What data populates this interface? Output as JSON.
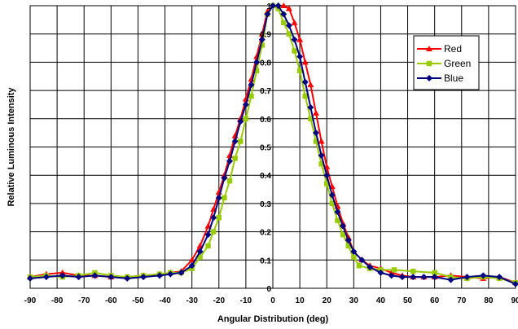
{
  "chart_data": {
    "type": "line",
    "title": "",
    "xlabel": "Angular Distribution (deg)",
    "ylabel": "Relative Luminous Intensity",
    "xlim": [
      -90,
      90
    ],
    "ylim": [
      0,
      1
    ],
    "x_ticks": [
      "-90",
      "-80",
      "-70",
      "-60",
      "-50",
      "-40",
      "-30",
      "-20",
      "-10",
      "0",
      "10",
      "20",
      "30",
      "40",
      "50",
      "60",
      "70",
      "80",
      "90"
    ],
    "y_ticks": [
      "0",
      "0.1",
      "0.2",
      "0.3",
      "0.4",
      "0.5",
      "0.6",
      "0.7",
      "0.8",
      "0.9",
      "1"
    ],
    "grid": true,
    "legend_position": "top-right",
    "series": [
      {
        "name": "Red",
        "color": "#ff0000",
        "marker": "triangle",
        "points": [
          [
            -90,
            0.04
          ],
          [
            -84,
            0.05
          ],
          [
            -78,
            0.055
          ],
          [
            -72,
            0.045
          ],
          [
            -66,
            0.045
          ],
          [
            -60,
            0.04
          ],
          [
            -54,
            0.04
          ],
          [
            -48,
            0.045
          ],
          [
            -42,
            0.05
          ],
          [
            -38,
            0.055
          ],
          [
            -34,
            0.06
          ],
          [
            -30,
            0.1
          ],
          [
            -27,
            0.15
          ],
          [
            -24,
            0.22
          ],
          [
            -22,
            0.28
          ],
          [
            -20,
            0.34
          ],
          [
            -18,
            0.4
          ],
          [
            -16,
            0.47
          ],
          [
            -14,
            0.54
          ],
          [
            -12,
            0.6
          ],
          [
            -10,
            0.67
          ],
          [
            -8,
            0.74
          ],
          [
            -6,
            0.82
          ],
          [
            -4,
            0.9
          ],
          [
            -2,
            0.98
          ],
          [
            0,
            1.0
          ],
          [
            2,
            1.0
          ],
          [
            4,
            1.0
          ],
          [
            6,
            0.99
          ],
          [
            8,
            0.94
          ],
          [
            10,
            0.88
          ],
          [
            12,
            0.8
          ],
          [
            14,
            0.72
          ],
          [
            16,
            0.62
          ],
          [
            18,
            0.52
          ],
          [
            20,
            0.43
          ],
          [
            22,
            0.36
          ],
          [
            24,
            0.29
          ],
          [
            26,
            0.23
          ],
          [
            28,
            0.18
          ],
          [
            30,
            0.13
          ],
          [
            33,
            0.1
          ],
          [
            36,
            0.08
          ],
          [
            40,
            0.07
          ],
          [
            44,
            0.055
          ],
          [
            48,
            0.045
          ],
          [
            52,
            0.04
          ],
          [
            56,
            0.04
          ],
          [
            60,
            0.04
          ],
          [
            66,
            0.045
          ],
          [
            72,
            0.04
          ],
          [
            78,
            0.035
          ],
          [
            84,
            0.04
          ],
          [
            90,
            0.02
          ]
        ]
      },
      {
        "name": "Green",
        "color": "#99cc00",
        "marker": "square",
        "points": [
          [
            -90,
            0.04
          ],
          [
            -84,
            0.045
          ],
          [
            -78,
            0.04
          ],
          [
            -72,
            0.045
          ],
          [
            -66,
            0.055
          ],
          [
            -60,
            0.045
          ],
          [
            -54,
            0.04
          ],
          [
            -48,
            0.045
          ],
          [
            -42,
            0.05
          ],
          [
            -38,
            0.055
          ],
          [
            -34,
            0.055
          ],
          [
            -30,
            0.07
          ],
          [
            -27,
            0.11
          ],
          [
            -24,
            0.15
          ],
          [
            -22,
            0.2
          ],
          [
            -20,
            0.25
          ],
          [
            -18,
            0.32
          ],
          [
            -16,
            0.38
          ],
          [
            -14,
            0.46
          ],
          [
            -12,
            0.52
          ],
          [
            -10,
            0.6
          ],
          [
            -8,
            0.68
          ],
          [
            -6,
            0.77
          ],
          [
            -4,
            0.86
          ],
          [
            -2,
            0.97
          ],
          [
            0,
            1.0
          ],
          [
            2,
            0.99
          ],
          [
            4,
            0.94
          ],
          [
            6,
            0.9
          ],
          [
            8,
            0.84
          ],
          [
            10,
            0.77
          ],
          [
            12,
            0.68
          ],
          [
            14,
            0.6
          ],
          [
            16,
            0.52
          ],
          [
            18,
            0.44
          ],
          [
            20,
            0.37
          ],
          [
            22,
            0.3
          ],
          [
            24,
            0.24
          ],
          [
            26,
            0.19
          ],
          [
            28,
            0.15
          ],
          [
            30,
            0.11
          ],
          [
            32,
            0.08
          ],
          [
            36,
            0.07
          ],
          [
            40,
            0.065
          ],
          [
            45,
            0.065
          ],
          [
            52,
            0.06
          ],
          [
            60,
            0.055
          ],
          [
            66,
            0.04
          ],
          [
            72,
            0.035
          ],
          [
            78,
            0.04
          ],
          [
            84,
            0.035
          ],
          [
            90,
            0.02
          ]
        ]
      },
      {
        "name": "Blue",
        "color": "#000080",
        "marker": "diamond",
        "points": [
          [
            -90,
            0.035
          ],
          [
            -84,
            0.04
          ],
          [
            -78,
            0.045
          ],
          [
            -72,
            0.04
          ],
          [
            -66,
            0.045
          ],
          [
            -60,
            0.04
          ],
          [
            -54,
            0.035
          ],
          [
            -48,
            0.04
          ],
          [
            -42,
            0.045
          ],
          [
            -38,
            0.05
          ],
          [
            -34,
            0.055
          ],
          [
            -30,
            0.08
          ],
          [
            -27,
            0.13
          ],
          [
            -24,
            0.19
          ],
          [
            -22,
            0.25
          ],
          [
            -20,
            0.32
          ],
          [
            -18,
            0.39
          ],
          [
            -16,
            0.45
          ],
          [
            -14,
            0.52
          ],
          [
            -12,
            0.59
          ],
          [
            -10,
            0.65
          ],
          [
            -8,
            0.72
          ],
          [
            -6,
            0.8
          ],
          [
            -4,
            0.88
          ],
          [
            -2,
            0.97
          ],
          [
            0,
            1.0
          ],
          [
            2,
            1.0
          ],
          [
            4,
            0.97
          ],
          [
            6,
            0.93
          ],
          [
            8,
            0.88
          ],
          [
            10,
            0.82
          ],
          [
            12,
            0.73
          ],
          [
            14,
            0.64
          ],
          [
            16,
            0.55
          ],
          [
            18,
            0.47
          ],
          [
            20,
            0.4
          ],
          [
            22,
            0.33
          ],
          [
            24,
            0.27
          ],
          [
            26,
            0.22
          ],
          [
            28,
            0.17
          ],
          [
            30,
            0.13
          ],
          [
            33,
            0.1
          ],
          [
            36,
            0.075
          ],
          [
            40,
            0.055
          ],
          [
            44,
            0.045
          ],
          [
            48,
            0.04
          ],
          [
            52,
            0.04
          ],
          [
            56,
            0.04
          ],
          [
            60,
            0.04
          ],
          [
            66,
            0.03
          ],
          [
            72,
            0.04
          ],
          [
            78,
            0.045
          ],
          [
            84,
            0.04
          ],
          [
            90,
            0.015
          ]
        ]
      }
    ]
  }
}
